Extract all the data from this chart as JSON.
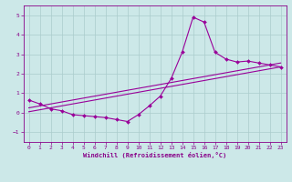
{
  "xlabel": "Windchill (Refroidissement éolien,°C)",
  "background_color": "#cce8e8",
  "grid_color": "#aacccc",
  "line_color": "#990099",
  "xlim": [
    -0.5,
    23.5
  ],
  "ylim": [
    -1.5,
    5.5
  ],
  "xticks": [
    0,
    1,
    2,
    3,
    4,
    5,
    6,
    7,
    8,
    9,
    10,
    11,
    12,
    13,
    14,
    15,
    16,
    17,
    18,
    19,
    20,
    21,
    22,
    23
  ],
  "yticks": [
    -1,
    0,
    1,
    2,
    3,
    4,
    5
  ],
  "series1_x": [
    0,
    1,
    2,
    3,
    4,
    5,
    6,
    7,
    8,
    9,
    10,
    11,
    12,
    13,
    14,
    15,
    16,
    17,
    18,
    19,
    20,
    21,
    22,
    23
  ],
  "series1_y": [
    0.65,
    0.45,
    0.2,
    0.1,
    -0.1,
    -0.15,
    -0.2,
    -0.25,
    -0.35,
    -0.45,
    -0.1,
    0.35,
    0.85,
    1.75,
    3.1,
    4.9,
    4.65,
    3.1,
    2.75,
    2.6,
    2.65,
    2.55,
    2.45,
    2.35
  ],
  "series2_x": [
    0,
    23
  ],
  "series2_y": [
    0.05,
    2.35
  ],
  "series3_x": [
    0,
    23
  ],
  "series3_y": [
    0.25,
    2.55
  ],
  "xlabel_fontsize": 5.0,
  "tick_fontsize": 4.5,
  "marker_size": 2.0,
  "line_width": 0.8
}
